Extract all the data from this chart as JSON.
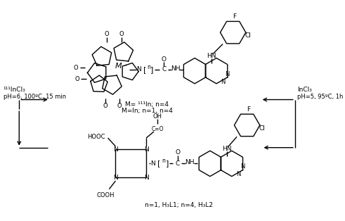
{
  "bg_color": "#ffffff",
  "fig_width": 4.91,
  "fig_height": 3.14,
  "dpi": 100,
  "text": {
    "top_label1": "M= ¹¹¹In; n=4",
    "top_label2": "M=In; n=1, n=4",
    "bottom_label": "n=1, H₃L1; n=4, H₃L2",
    "left_reagent1": "¹¹¹InCl₃",
    "left_reagent2": "pH=6, 100ºC, 15 min",
    "right_reagent1": "InCl₃",
    "right_reagent2": "pH=5, 95ºC, 1h"
  }
}
